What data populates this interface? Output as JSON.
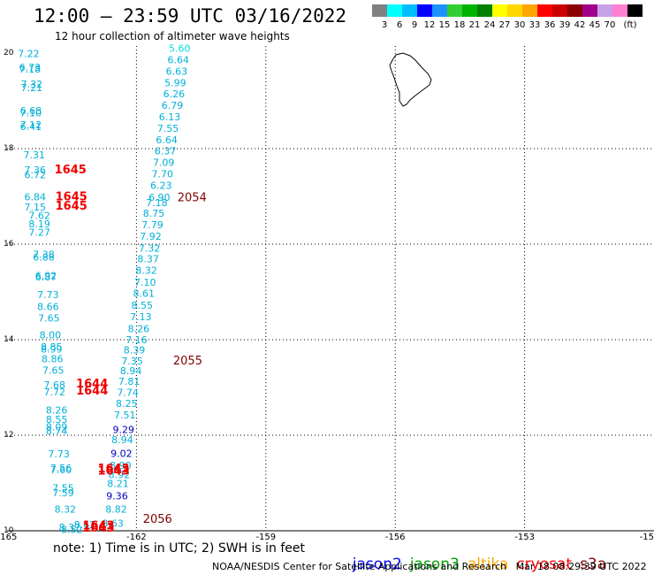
{
  "header": {
    "title": "12:00 – 23:59 UTC 03/16/2022",
    "subtitle": "12 hour collection of altimeter wave heights"
  },
  "colorscale": {
    "colors": [
      "#808080",
      "#00ffff",
      "#00bfff",
      "#0000ff",
      "#1e90ff",
      "#32cd32",
      "#00b200",
      "#008000",
      "#ffff00",
      "#ffd700",
      "#ffa500",
      "#ff0000",
      "#cc0000",
      "#8b0000",
      "#a0008c",
      "#c8a0e6",
      "#ff80d0",
      "#000000"
    ],
    "labels": [
      "3",
      "6",
      "9",
      "12",
      "15",
      "18",
      "21",
      "24",
      "27",
      "30",
      "33",
      "36",
      "39",
      "42",
      "45",
      "70",
      "(ft)"
    ]
  },
  "axes": {
    "lon_labels": [
      "-165",
      "-162",
      "-159",
      "-156",
      "-153",
      "-15"
    ],
    "lat_labels": [
      "20",
      "18",
      "16",
      "14",
      "12",
      "10"
    ]
  },
  "chart_data": {
    "type": "scatter",
    "xlabel": "",
    "ylabel": "",
    "xlim": [
      -165,
      -150
    ],
    "ylim": [
      10,
      20
    ],
    "grid": true,
    "points": [
      {
        "lon": -164.75,
        "lat": 19.92,
        "text": "7.22",
        "color": "#00b0d8"
      },
      {
        "lon": -164.72,
        "lat": 19.63,
        "text": "6.73",
        "color": "#00b0d8"
      },
      {
        "lon": -164.72,
        "lat": 19.59,
        "text": "7.18",
        "color": "#00b0d8"
      },
      {
        "lon": -164.68,
        "lat": 19.28,
        "text": "7.32",
        "color": "#00b0d8"
      },
      {
        "lon": -164.68,
        "lat": 19.2,
        "text": "7.21",
        "color": "#00b0d8"
      },
      {
        "lon": -164.7,
        "lat": 18.72,
        "text": "6.68",
        "color": "#00b0d8"
      },
      {
        "lon": -164.7,
        "lat": 18.68,
        "text": "7.10",
        "color": "#00b0d8"
      },
      {
        "lon": -164.7,
        "lat": 18.43,
        "text": "7.12",
        "color": "#00b0d8"
      },
      {
        "lon": -164.7,
        "lat": 18.39,
        "text": "6.41",
        "color": "#00b0d8"
      },
      {
        "lon": -164.62,
        "lat": 17.8,
        "text": "7.31",
        "color": "#00b0d8"
      },
      {
        "lon": -164.6,
        "lat": 17.48,
        "text": "7.36",
        "color": "#00b0d8"
      },
      {
        "lon": -164.6,
        "lat": 17.38,
        "text": "6.72",
        "color": "#00b0d8"
      },
      {
        "lon": -164.6,
        "lat": 16.92,
        "text": "6.84",
        "color": "#00b0d8"
      },
      {
        "lon": -164.6,
        "lat": 16.7,
        "text": "7.15",
        "color": "#00b0d8"
      },
      {
        "lon": -164.5,
        "lat": 16.53,
        "text": "7.62",
        "color": "#00b0d8"
      },
      {
        "lon": -164.5,
        "lat": 16.35,
        "text": "8.19",
        "color": "#00b0d8"
      },
      {
        "lon": -164.5,
        "lat": 16.18,
        "text": "7.27",
        "color": "#00b0d8"
      },
      {
        "lon": -164.4,
        "lat": 15.71,
        "text": "7.38",
        "color": "#00b0d8"
      },
      {
        "lon": -164.4,
        "lat": 15.66,
        "text": "6.88",
        "color": "#00b0d8"
      },
      {
        "lon": -164.35,
        "lat": 15.27,
        "text": "6.92",
        "color": "#00b0d8"
      },
      {
        "lon": -164.35,
        "lat": 15.24,
        "text": "6.87",
        "color": "#00b0d8"
      },
      {
        "lon": -164.3,
        "lat": 14.87,
        "text": "7.73",
        "color": "#00b0d8"
      },
      {
        "lon": -164.3,
        "lat": 14.62,
        "text": "8.66",
        "color": "#00b0d8"
      },
      {
        "lon": -164.28,
        "lat": 14.38,
        "text": "7.65",
        "color": "#00b0d8"
      },
      {
        "lon": -164.25,
        "lat": 14.03,
        "text": "8.00",
        "color": "#00b0d8"
      },
      {
        "lon": -164.22,
        "lat": 13.78,
        "text": "8.85",
        "color": "#00b0d8"
      },
      {
        "lon": -164.22,
        "lat": 13.73,
        "text": "8.99",
        "color": "#00b0d8"
      },
      {
        "lon": -164.2,
        "lat": 13.53,
        "text": "8.86",
        "color": "#00b0d8"
      },
      {
        "lon": -164.18,
        "lat": 13.29,
        "text": "7.65",
        "color": "#00b0d8"
      },
      {
        "lon": -164.15,
        "lat": 12.98,
        "text": "7.68",
        "color": "#00b0d8"
      },
      {
        "lon": -164.15,
        "lat": 12.83,
        "text": "7.72",
        "color": "#00b0d8"
      },
      {
        "lon": -164.1,
        "lat": 12.45,
        "text": "8.26",
        "color": "#00b0d8"
      },
      {
        "lon": -164.1,
        "lat": 12.26,
        "text": "8.55",
        "color": "#00b0d8"
      },
      {
        "lon": -164.1,
        "lat": 12.1,
        "text": "8.09",
        "color": "#00b0d8"
      },
      {
        "lon": -164.1,
        "lat": 12.02,
        "text": "8.74",
        "color": "#00b0d8"
      },
      {
        "lon": -164.05,
        "lat": 11.54,
        "text": "7.73",
        "color": "#00b0d8"
      },
      {
        "lon": -164.0,
        "lat": 11.24,
        "text": "7.56",
        "color": "#00b0d8"
      },
      {
        "lon": -164.0,
        "lat": 11.2,
        "text": "7.60",
        "color": "#00b0d8"
      },
      {
        "lon": -163.95,
        "lat": 10.82,
        "text": "7.55",
        "color": "#00b0d8"
      },
      {
        "lon": -163.95,
        "lat": 10.72,
        "text": "7.59",
        "color": "#00b0d8"
      },
      {
        "lon": -163.9,
        "lat": 10.38,
        "text": "8.32",
        "color": "#00b0d8"
      },
      {
        "lon": -163.8,
        "lat": 10.0,
        "text": "8.37",
        "color": "#00b0d8"
      },
      {
        "lon": -163.75,
        "lat": 9.95,
        "text": "8.52",
        "color": "#00b0d8"
      },
      {
        "lon": -163.45,
        "lat": 10.06,
        "text": "8.62",
        "color": "#00b0d8"
      },
      {
        "lon": -162.8,
        "lat": 10.08,
        "text": "8.63",
        "color": "#00b0d8"
      },
      {
        "lon": -162.72,
        "lat": 10.38,
        "text": "8.82",
        "color": "#00b0d8"
      },
      {
        "lon": -162.7,
        "lat": 10.66,
        "text": "9.36",
        "color": "#0000c0"
      },
      {
        "lon": -162.68,
        "lat": 10.92,
        "text": "8.21",
        "color": "#00b0d8"
      },
      {
        "lon": -162.65,
        "lat": 11.1,
        "text": "8.92",
        "color": "#00b0d8"
      },
      {
        "lon": -162.62,
        "lat": 11.3,
        "text": "8.90",
        "color": "#00b0d8"
      },
      {
        "lon": -162.6,
        "lat": 11.55,
        "text": "9.02",
        "color": "#0000c0"
      },
      {
        "lon": -162.58,
        "lat": 11.83,
        "text": "8.94",
        "color": "#00b0d8"
      },
      {
        "lon": -162.55,
        "lat": 12.05,
        "text": "9.29",
        "color": "#0000c0"
      },
      {
        "lon": -162.52,
        "lat": 12.35,
        "text": "7.51",
        "color": "#00b0d8"
      },
      {
        "lon": -162.48,
        "lat": 12.59,
        "text": "8.25",
        "color": "#00b0d8"
      },
      {
        "lon": -162.45,
        "lat": 12.82,
        "text": "7.74",
        "color": "#00b0d8"
      },
      {
        "lon": -162.42,
        "lat": 13.06,
        "text": "7.81",
        "color": "#00b0d8"
      },
      {
        "lon": -162.38,
        "lat": 13.28,
        "text": "8.94",
        "color": "#00b0d8"
      },
      {
        "lon": -162.35,
        "lat": 13.48,
        "text": "7.35",
        "color": "#00b0d8"
      },
      {
        "lon": -162.3,
        "lat": 13.71,
        "text": "8.39",
        "color": "#00b0d8"
      },
      {
        "lon": -162.25,
        "lat": 13.93,
        "text": "7.16",
        "color": "#00b0d8"
      },
      {
        "lon": -162.2,
        "lat": 14.16,
        "text": "8.26",
        "color": "#00b0d8"
      },
      {
        "lon": -162.15,
        "lat": 14.41,
        "text": "7.13",
        "color": "#00b0d8"
      },
      {
        "lon": -162.12,
        "lat": 14.65,
        "text": "8.55",
        "color": "#00b0d8"
      },
      {
        "lon": -162.08,
        "lat": 14.9,
        "text": "8.61",
        "color": "#00b0d8"
      },
      {
        "lon": -162.05,
        "lat": 15.13,
        "text": "7.10",
        "color": "#00b0d8"
      },
      {
        "lon": -162.02,
        "lat": 15.38,
        "text": "8.32",
        "color": "#00b0d8"
      },
      {
        "lon": -161.98,
        "lat": 15.62,
        "text": "8.37",
        "color": "#00b0d8"
      },
      {
        "lon": -161.95,
        "lat": 15.84,
        "text": "7.32",
        "color": "#00b0d8"
      },
      {
        "lon": -161.92,
        "lat": 16.09,
        "text": "7.92",
        "color": "#00b0d8"
      },
      {
        "lon": -161.88,
        "lat": 16.33,
        "text": "7.79",
        "color": "#00b0d8"
      },
      {
        "lon": -161.85,
        "lat": 16.57,
        "text": "8.75",
        "color": "#00b0d8"
      },
      {
        "lon": -161.78,
        "lat": 16.8,
        "text": "7.18",
        "color": "#00b0d8"
      },
      {
        "lon": -161.72,
        "lat": 16.91,
        "text": "6.90",
        "color": "#00b0d8"
      },
      {
        "lon": -161.68,
        "lat": 17.16,
        "text": "6.23",
        "color": "#00b0d8"
      },
      {
        "lon": -161.65,
        "lat": 17.4,
        "text": "7.70",
        "color": "#00b0d8"
      },
      {
        "lon": -161.62,
        "lat": 17.64,
        "text": "7.09",
        "color": "#00b0d8"
      },
      {
        "lon": -161.58,
        "lat": 17.88,
        "text": "6.37",
        "color": "#00b0d8"
      },
      {
        "lon": -161.55,
        "lat": 18.11,
        "text": "6.64",
        "color": "#00b0d8"
      },
      {
        "lon": -161.52,
        "lat": 18.35,
        "text": "7.55",
        "color": "#00b0d8"
      },
      {
        "lon": -161.48,
        "lat": 18.59,
        "text": "6.13",
        "color": "#00b0d8"
      },
      {
        "lon": -161.42,
        "lat": 18.83,
        "text": "6.79",
        "color": "#00b0d8"
      },
      {
        "lon": -161.38,
        "lat": 19.07,
        "text": "6.26",
        "color": "#00b0d8"
      },
      {
        "lon": -161.35,
        "lat": 19.31,
        "text": "5.99",
        "color": "#00b0d8"
      },
      {
        "lon": -161.32,
        "lat": 19.55,
        "text": "6.63",
        "color": "#00b0d8"
      },
      {
        "lon": -161.28,
        "lat": 19.79,
        "text": "6.64",
        "color": "#00b0d8"
      },
      {
        "lon": -161.25,
        "lat": 20.03,
        "text": "5.60",
        "color": "#00dede"
      },
      {
        "lon": -163.9,
        "lat": 17.48,
        "text": "1645",
        "color": "#ee0000",
        "track": true
      },
      {
        "lon": -163.88,
        "lat": 16.92,
        "text": "1645",
        "color": "#ee0000",
        "track": true
      },
      {
        "lon": -163.88,
        "lat": 16.72,
        "text": "1645",
        "color": "#ee0000",
        "track": true
      },
      {
        "lon": -163.4,
        "lat": 13.0,
        "text": "1644",
        "color": "#ee0000",
        "track": true
      },
      {
        "lon": -163.4,
        "lat": 12.85,
        "text": "1644",
        "color": "#ee0000",
        "track": true
      },
      {
        "lon": -162.9,
        "lat": 11.22,
        "text": "1643",
        "color": "#ee0000",
        "track": true
      },
      {
        "lon": -162.9,
        "lat": 11.18,
        "text": "1643",
        "color": "#ee0000",
        "track": true
      },
      {
        "lon": -163.25,
        "lat": 10.03,
        "text": "1643",
        "color": "#ee0000",
        "track": true
      },
      {
        "lon": -163.25,
        "lat": 9.98,
        "text": "1643",
        "color": "#ee0000",
        "track": true
      },
      {
        "lon": -161.05,
        "lat": 16.9,
        "text": "2054",
        "color": "#800000",
        "track": true
      },
      {
        "lon": -161.15,
        "lat": 13.48,
        "text": "2055",
        "color": "#800000",
        "track": true
      },
      {
        "lon": -161.85,
        "lat": 10.17,
        "text": "2056",
        "color": "#800000",
        "track": true
      }
    ]
  },
  "footer": {
    "note": "note: 1) Time is in UTC; 2) SWH is in feet",
    "credit": "NOAA/NESDIS Center for Satellite Applications and Research   Mar 18 08:29:39 UTC 2022",
    "satellites": [
      {
        "name": "jason2",
        "color": "#0000ff"
      },
      {
        "name": "jason3",
        "color": "#00a000"
      },
      {
        "name": "altika",
        "color": "#ffa500"
      },
      {
        "name": "cryosat",
        "color": "#ff0000"
      },
      {
        "name": "s3a",
        "color": "#800000"
      }
    ]
  }
}
